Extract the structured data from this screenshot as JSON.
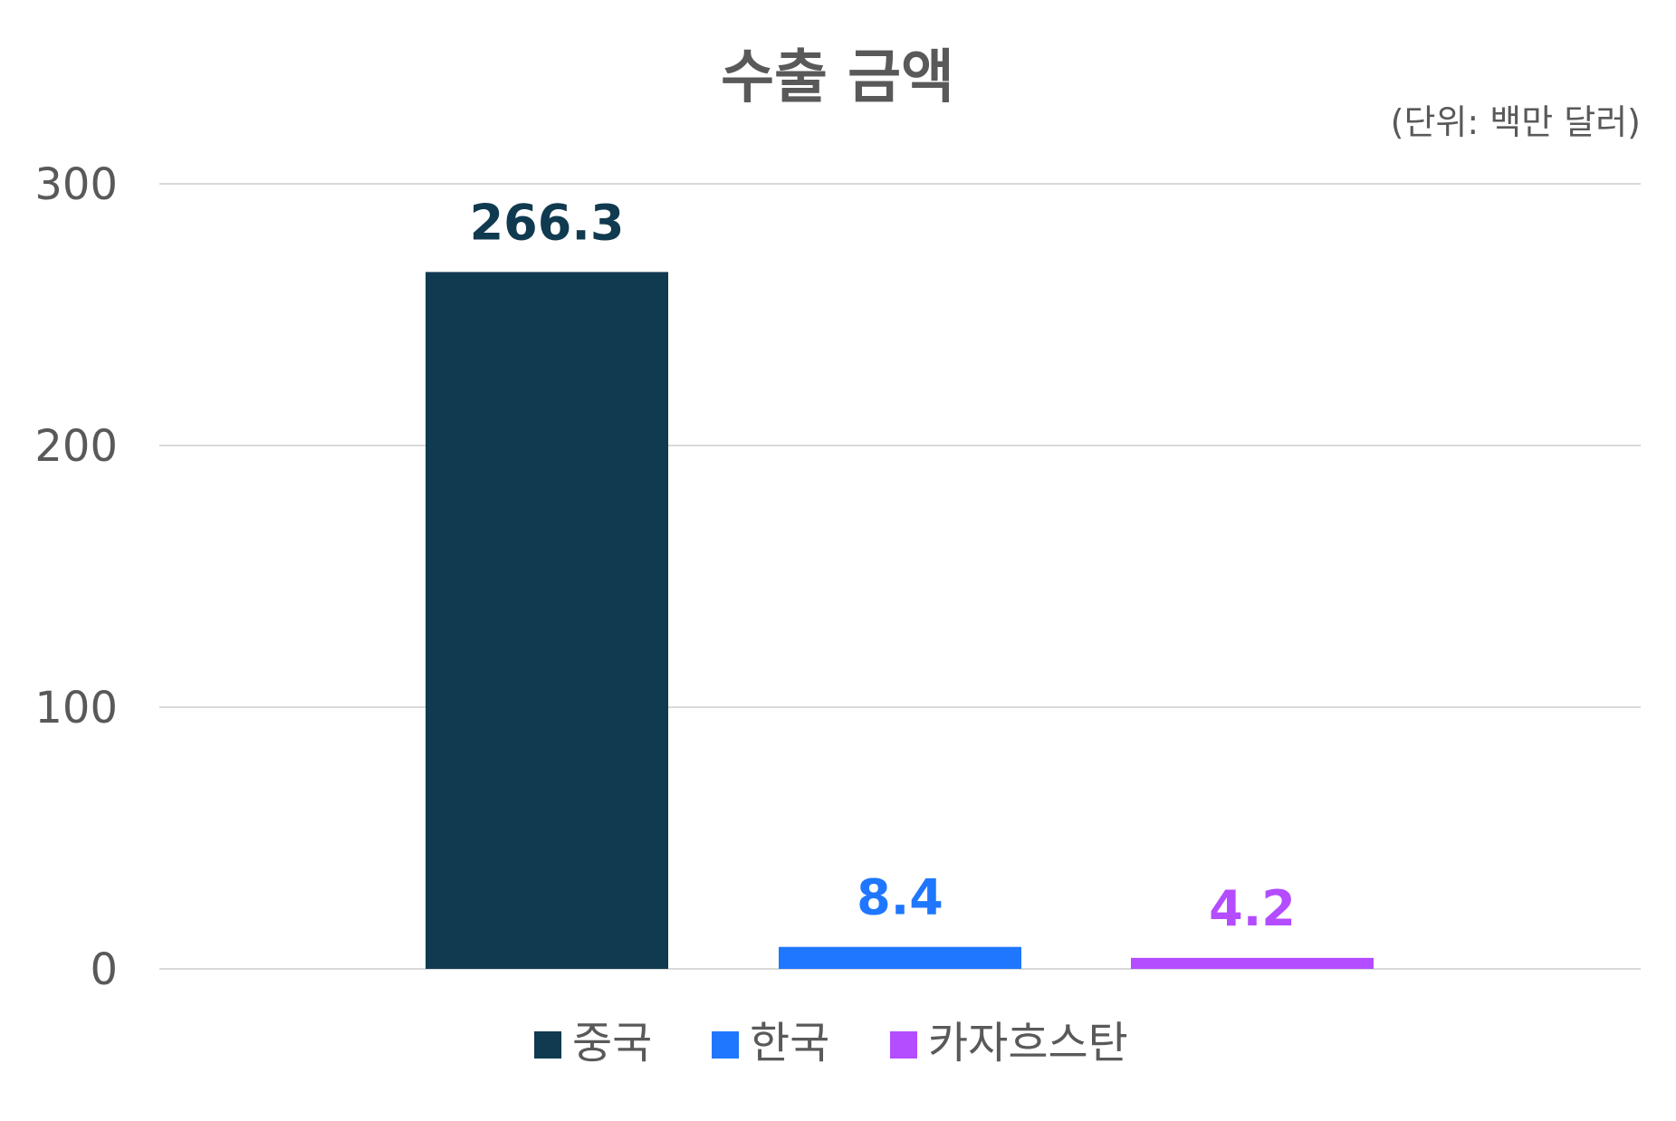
{
  "chart_data": {
    "type": "bar",
    "title": "수출 금액",
    "unit_note": "(단위: 백만 달러)",
    "categories": [
      "중국",
      "한국",
      "카자흐스탄"
    ],
    "values": [
      266.3,
      8.4,
      4.2
    ],
    "data_labels": [
      "266.3",
      "8.4",
      "4.2"
    ],
    "colors": [
      "#103A4F",
      "#1F77FF",
      "#B44CFF"
    ],
    "ylim": [
      0,
      300
    ],
    "yticks": [
      0,
      100,
      200,
      300
    ],
    "grid": true,
    "legend_position": "bottom",
    "legend": [
      "중국",
      "한국",
      "카자흐스탄"
    ],
    "xlabel": "",
    "ylabel": ""
  }
}
